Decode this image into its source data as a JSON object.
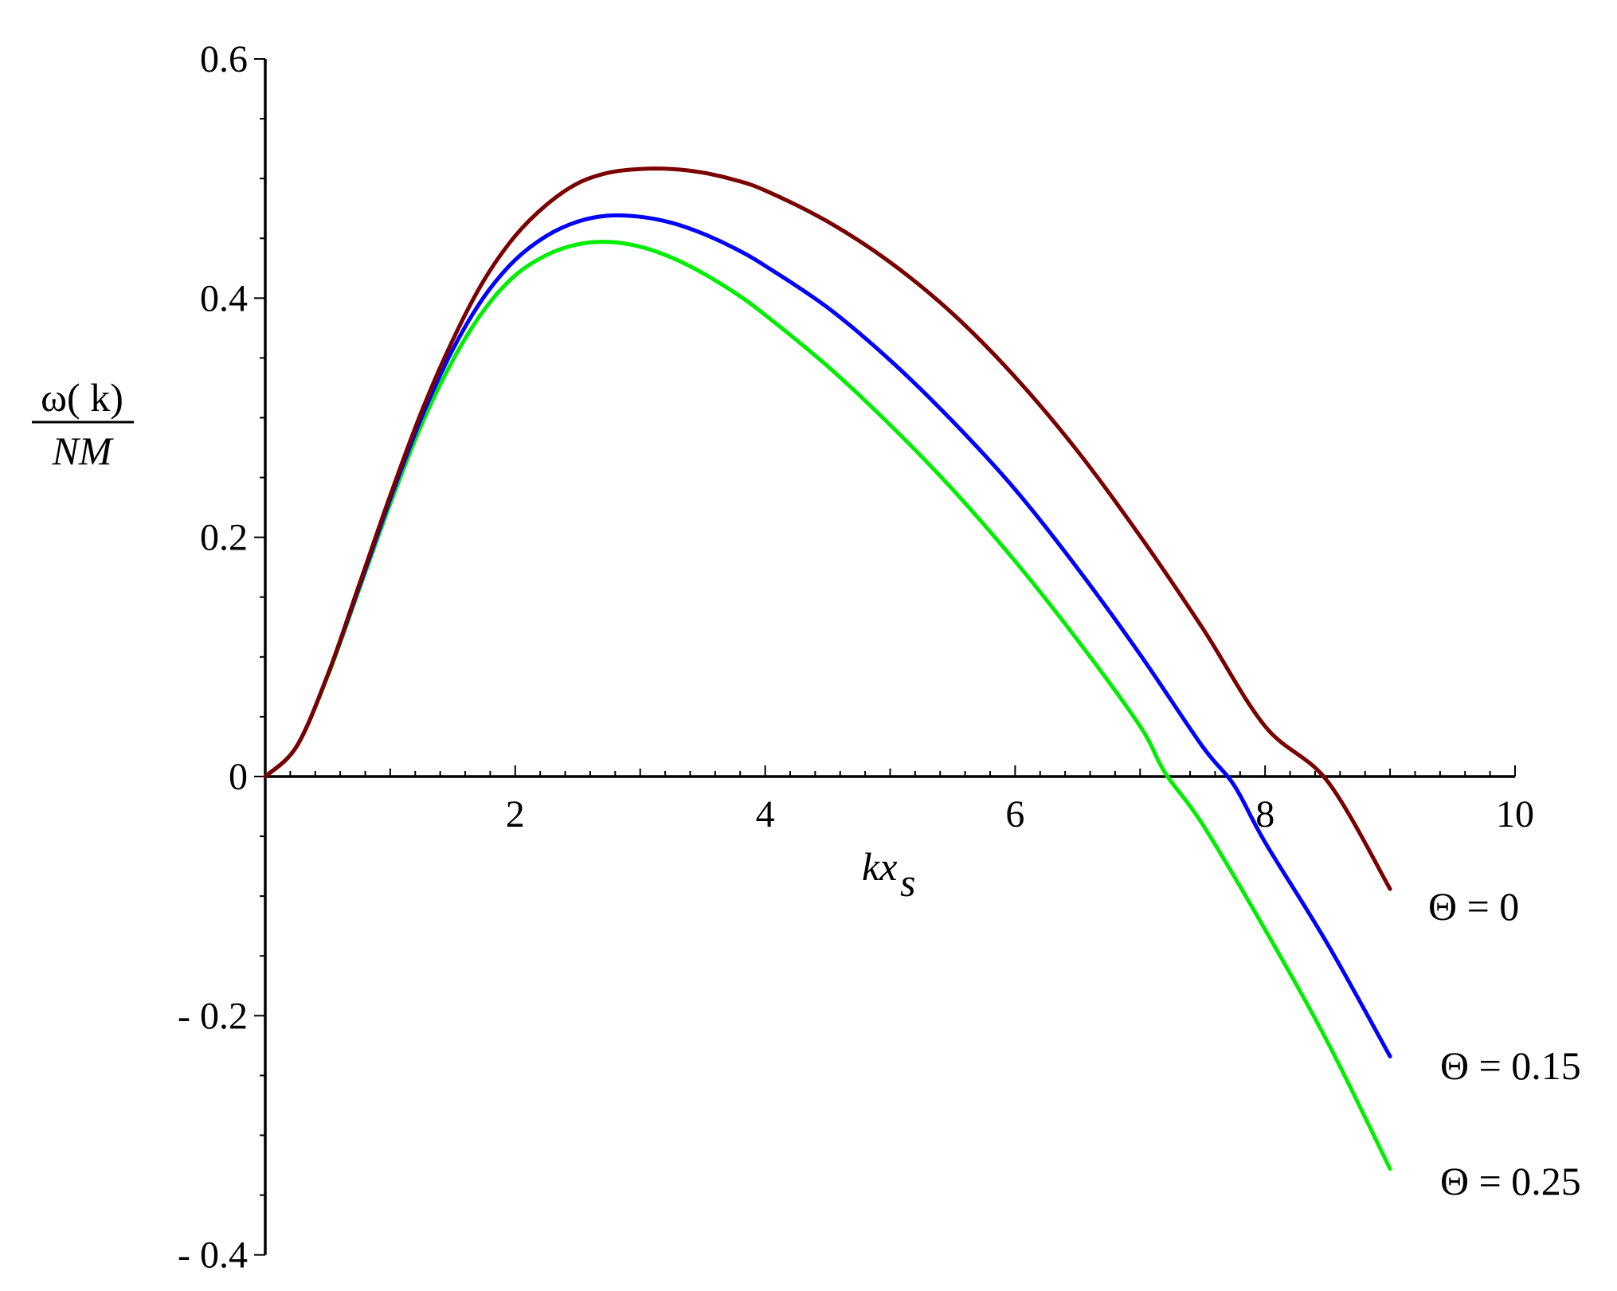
{
  "chart_data": {
    "type": "line",
    "title": "",
    "xlabel": {
      "main": "kx",
      "sub": "s"
    },
    "ylabel": {
      "numerator": "ω( k)",
      "denominator": "NM"
    },
    "xlim": [
      0,
      10
    ],
    "ylim": [
      -0.4,
      0.6
    ],
    "x_ticks": [
      {
        "value": 2,
        "label": "2"
      },
      {
        "value": 4,
        "label": "4"
      },
      {
        "value": 6,
        "label": "6"
      },
      {
        "value": 8,
        "label": "8"
      },
      {
        "value": 10,
        "label": "10"
      }
    ],
    "y_ticks": [
      {
        "value": 0.6,
        "label": "0.6"
      },
      {
        "value": 0.4,
        "label": "0.4"
      },
      {
        "value": 0.2,
        "label": "0.2"
      },
      {
        "value": 0,
        "label": "0"
      },
      {
        "value": -0.2,
        "label": "- 0.2"
      },
      {
        "value": -0.4,
        "label": "- 0.4"
      }
    ],
    "grid": false,
    "legend": "right, beside curve ends",
    "series": [
      {
        "name": "Θ = 0",
        "color": "#7a0000",
        "x": [
          0,
          0.25,
          0.5,
          0.75,
          1.0,
          1.25,
          1.5,
          1.75,
          2.0,
          2.25,
          2.5,
          2.75,
          3.0,
          3.25,
          3.5,
          3.75,
          4.0,
          4.5,
          5.0,
          5.5,
          6.0,
          6.5,
          7.0,
          7.5,
          8.0,
          8.5,
          9.0
        ],
        "y": [
          0,
          0.025,
          0.085,
          0.16,
          0.235,
          0.305,
          0.365,
          0.415,
          0.452,
          0.478,
          0.496,
          0.505,
          0.508,
          0.508,
          0.505,
          0.499,
          0.49,
          0.464,
          0.43,
          0.387,
          0.334,
          0.272,
          0.201,
          0.124,
          0.042,
          -0.004,
          -0.094
        ]
      },
      {
        "name": "Θ = 0.15",
        "color": "#0000ff",
        "x": [
          0,
          0.25,
          0.5,
          0.75,
          1.0,
          1.25,
          1.5,
          1.75,
          2.0,
          2.25,
          2.5,
          2.75,
          3.0,
          3.25,
          3.5,
          3.75,
          4.0,
          4.5,
          5.0,
          5.5,
          6.0,
          6.5,
          7.0,
          7.5,
          7.75,
          8.0,
          8.5,
          9.0
        ],
        "y": [
          0,
          0.025,
          0.085,
          0.158,
          0.232,
          0.3,
          0.357,
          0.401,
          0.432,
          0.452,
          0.464,
          0.469,
          0.468,
          0.463,
          0.454,
          0.442,
          0.427,
          0.392,
          0.348,
          0.297,
          0.24,
          0.174,
          0.102,
          0.025,
          -0.007,
          -0.055,
          -0.14,
          -0.234
        ]
      },
      {
        "name": "Θ = 0.25",
        "color": "#00ee00",
        "x": [
          0,
          0.25,
          0.5,
          0.75,
          1.0,
          1.25,
          1.5,
          1.75,
          2.0,
          2.25,
          2.5,
          2.75,
          3.0,
          3.25,
          3.5,
          3.75,
          4.0,
          4.5,
          5.0,
          5.5,
          6.0,
          6.5,
          7.0,
          7.2,
          7.5,
          8.0,
          8.5,
          9.0
        ],
        "y": [
          0,
          0.025,
          0.084,
          0.156,
          0.228,
          0.294,
          0.348,
          0.39,
          0.419,
          0.436,
          0.445,
          0.447,
          0.443,
          0.434,
          0.421,
          0.405,
          0.386,
          0.343,
          0.294,
          0.24,
          0.18,
          0.114,
          0.042,
          0.003,
          -0.04,
          -0.128,
          -0.222,
          -0.328
        ]
      }
    ]
  }
}
